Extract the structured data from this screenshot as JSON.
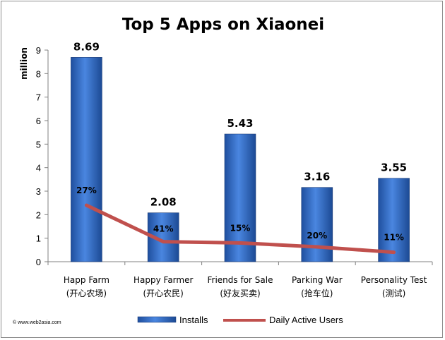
{
  "chart_data": {
    "type": "bar",
    "title": "Top 5 Apps on Xiaonei",
    "ylabel": "million",
    "ylim": [
      0,
      9
    ],
    "yticks": [
      "0",
      "1",
      "2",
      "3",
      "4",
      "5",
      "6",
      "7",
      "8",
      "9"
    ],
    "categories": [
      [
        "Happ Farm",
        "(开心农场)"
      ],
      [
        "Happy Farmer",
        "(开心农民)"
      ],
      [
        "Friends for Sale",
        "(好友买卖)"
      ],
      [
        "Parking War",
        "(抢车位)"
      ],
      [
        "Personality Test",
        "(测试)"
      ]
    ],
    "series": [
      {
        "name": "Installs",
        "type": "bar",
        "values": [
          8.69,
          2.08,
          5.43,
          3.16,
          3.55
        ],
        "labels": [
          "8.69",
          "2.08",
          "5.43",
          "3.16",
          "3.55"
        ],
        "color": "#2f66c9"
      },
      {
        "name": "Daily Active Users",
        "type": "line",
        "values": [
          2.4,
          0.85,
          0.8,
          0.63,
          0.4
        ],
        "labels": [
          "27%",
          "41%",
          "15%",
          "20%",
          "11%"
        ],
        "color": "#c0504d"
      }
    ],
    "grid": false,
    "legend": "bottom"
  },
  "credit": "© www.web2asia.com"
}
